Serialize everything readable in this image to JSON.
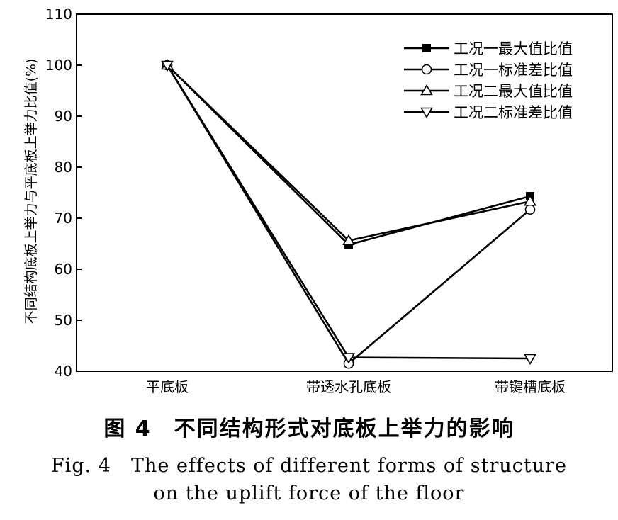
{
  "chart_data": {
    "type": "line",
    "title": "",
    "xlabel": "",
    "ylabel": "不同结构底板上举力与平底板上举力比值(%)",
    "categories": [
      "平底板",
      "带透水孔底板",
      "带键槽底板"
    ],
    "ylim": [
      40,
      110
    ],
    "yticks": [
      40,
      50,
      60,
      70,
      80,
      90,
      100,
      110
    ],
    "legend_position": "top-right",
    "grid": false,
    "series": [
      {
        "name": "工况一最大值比值",
        "marker": "square-filled",
        "values": [
          100,
          64.8,
          74.3
        ]
      },
      {
        "name": "工况一标准差比值",
        "marker": "circle-open",
        "values": [
          100,
          41.5,
          71.7
        ]
      },
      {
        "name": "工况二最大值比值",
        "marker": "triangle-up-open",
        "values": [
          100,
          65.6,
          73.3
        ]
      },
      {
        "name": "工况二标准差比值",
        "marker": "triangle-down-open",
        "values": [
          100,
          42.7,
          42.5
        ]
      }
    ]
  },
  "caption": {
    "cn": "图 4　不同结构形式对底板上举力的影响",
    "en_line1": "Fig. 4　The effects of different forms of structure",
    "en_line2": "on the uplift force of the floor"
  }
}
